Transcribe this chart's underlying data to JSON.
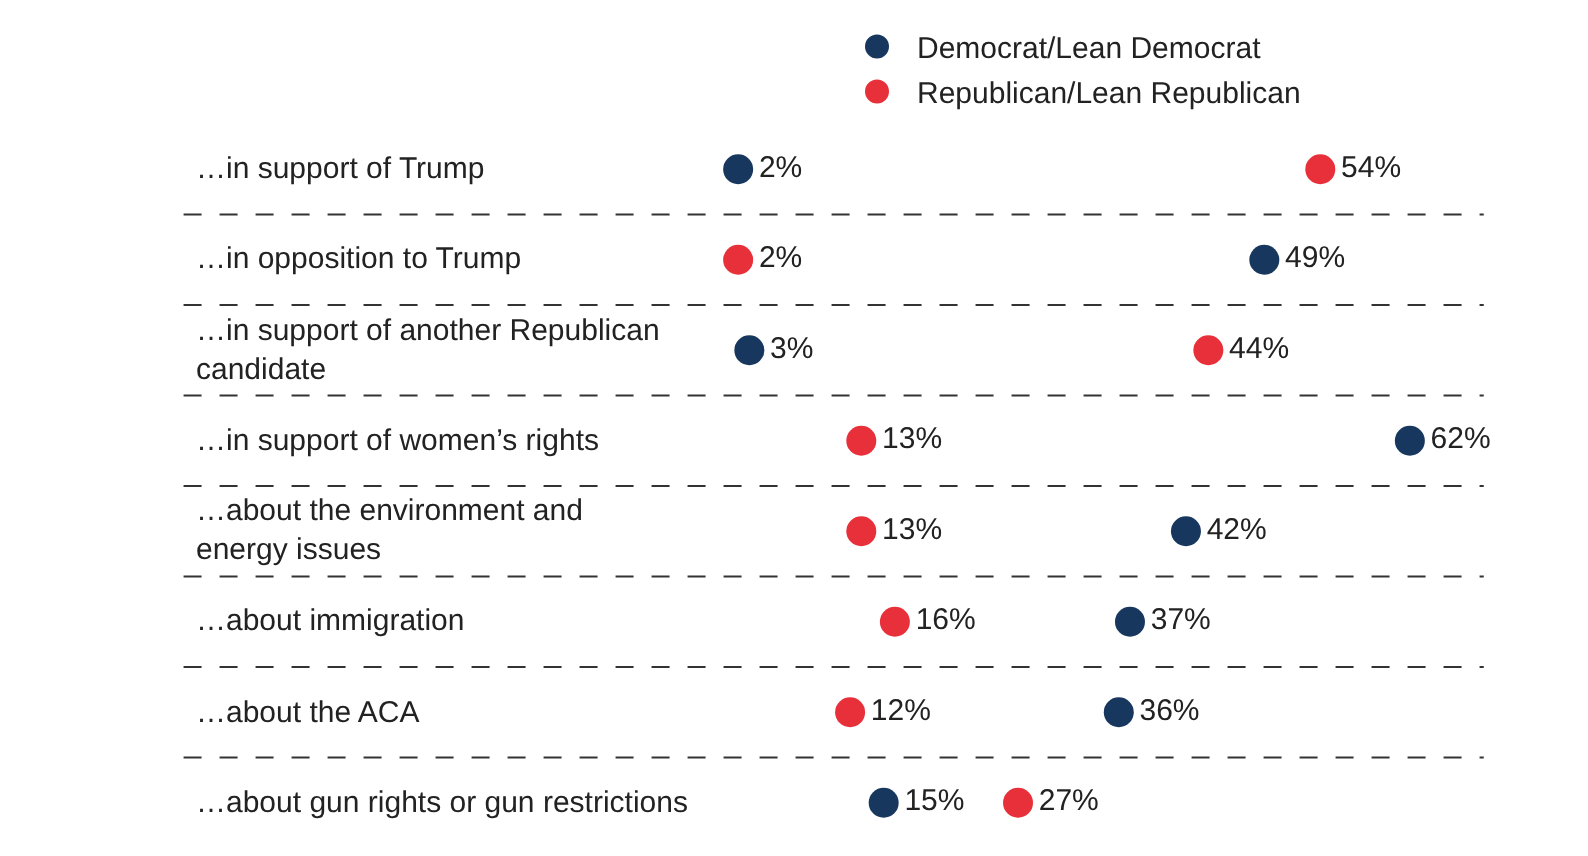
{
  "chart_data": {
    "type": "scatter",
    "orientation": "horizontal",
    "categories": [
      "…in support of Trump",
      "…in opposition to Trump",
      "…in support of another Republican\ncandidate",
      "…in support of women’s rights",
      "…about the environment and\nenergy issues",
      "…about immigration",
      "…about the ACA",
      "…about gun rights or gun restrictions"
    ],
    "series": [
      {
        "name": "Democrat/Lean Democrat",
        "color": "#17375e",
        "values": [
          2,
          49,
          3,
          62,
          42,
          37,
          36,
          15
        ],
        "value_labels": [
          "2%",
          "49%",
          "3%",
          "62%",
          "42%",
          "37%",
          "36%",
          "15%"
        ]
      },
      {
        "name": "Republican/Lean Republican",
        "color": "#e8303a",
        "values": [
          54,
          2,
          44,
          13,
          13,
          16,
          12,
          27
        ],
        "value_labels": [
          "54%",
          "2%",
          "44%",
          "13%",
          "13%",
          "16%",
          "12%",
          "27%"
        ]
      }
    ],
    "tick_labels": "y",
    "grid": "y",
    "legend": "top",
    "marker": "circle"
  }
}
